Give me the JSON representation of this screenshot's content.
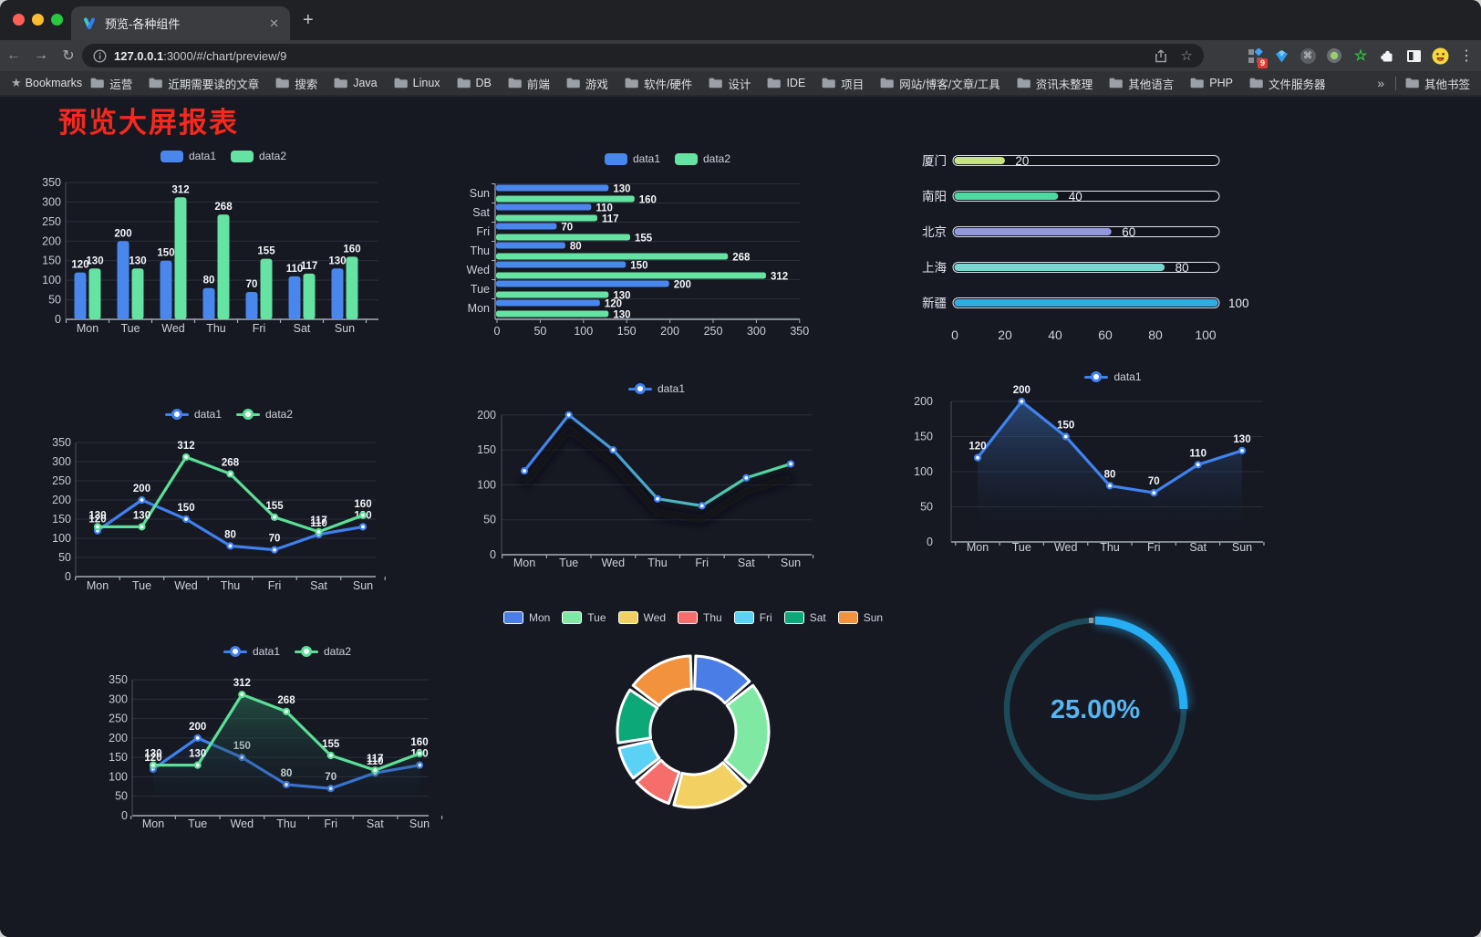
{
  "browser": {
    "traffic_lights": [
      "#ff5f57",
      "#febc2e",
      "#28c840"
    ],
    "tab": {
      "title": "预览-各种组件"
    },
    "icons": {
      "close": "✕",
      "plus": "+",
      "back": "←",
      "forward": "→",
      "reload": "↻",
      "home": "⌂",
      "star": "☆",
      "kebab": "⋮",
      "bookmarks_star": "★",
      "green_star": "☆"
    },
    "url": {
      "host": "127.0.0.1",
      "rest": ":3000/#/chart/preview/9"
    },
    "extension_badge": "9",
    "bookmarks_label": "Bookmarks",
    "bookmarks": [
      "运营",
      "近期需要读的文章",
      "搜索",
      "Java",
      "Linux",
      "DB",
      "前端",
      "游戏",
      "软件/硬件",
      "设计",
      "IDE",
      "项目",
      "网站/博客/文章/工具",
      "资讯未整理",
      "其他语言",
      "PHP",
      "文件服务器"
    ],
    "bookmarks_overflow": "»",
    "other_bookmarks": "其他书签"
  },
  "page": {
    "title": "预览大屏报表",
    "title_color": "#f5291d"
  },
  "chart_data": [
    {
      "id": "bar-vertical",
      "type": "bar",
      "categories": [
        "Mon",
        "Tue",
        "Wed",
        "Thu",
        "Fri",
        "Sat",
        "Sun"
      ],
      "series": [
        {
          "name": "data1",
          "color": "#4a87ec",
          "values": [
            120,
            200,
            150,
            80,
            70,
            110,
            130
          ]
        },
        {
          "name": "data2",
          "color": "#65e3a2",
          "values": [
            130,
            130,
            312,
            268,
            155,
            117,
            160
          ]
        }
      ],
      "ylim": [
        0,
        350
      ],
      "ystep": 50,
      "grid": true,
      "legend_position": "top"
    },
    {
      "id": "bar-horizontal",
      "type": "bar-horizontal",
      "categories": [
        "Mon",
        "Tue",
        "Wed",
        "Thu",
        "Fri",
        "Sat",
        "Sun"
      ],
      "series": [
        {
          "name": "data1",
          "color": "#4a87ec",
          "values": [
            120,
            200,
            150,
            80,
            70,
            110,
            130
          ]
        },
        {
          "name": "data2",
          "color": "#65e3a2",
          "values": [
            130,
            130,
            312,
            268,
            155,
            117,
            160
          ]
        }
      ],
      "xlim": [
        0,
        350
      ],
      "xstep": 50,
      "legend_position": "top"
    },
    {
      "id": "progress",
      "type": "progress-bars",
      "items": [
        {
          "label": "厦门",
          "value": 20,
          "color": "#c7e383"
        },
        {
          "label": "南阳",
          "value": 40,
          "color": "#4ed9a0"
        },
        {
          "label": "北京",
          "value": 60,
          "color": "#9397de"
        },
        {
          "label": "上海",
          "value": 80,
          "color": "#76d8d1"
        },
        {
          "label": "新疆",
          "value": 100,
          "color": "#32abe0"
        }
      ],
      "xlim": [
        0,
        100
      ],
      "xticks": [
        0,
        20,
        40,
        60,
        80,
        100
      ]
    },
    {
      "id": "line-dual",
      "type": "line",
      "categories": [
        "Mon",
        "Tue",
        "Wed",
        "Thu",
        "Fri",
        "Sat",
        "Sun"
      ],
      "series": [
        {
          "name": "data1",
          "color": "#3f80f0",
          "values": [
            120,
            200,
            150,
            80,
            70,
            110,
            130
          ]
        },
        {
          "name": "data2",
          "color": "#5bdf96",
          "values": [
            130,
            130,
            312,
            268,
            155,
            117,
            160
          ]
        }
      ],
      "ylim": [
        0,
        350
      ],
      "ystep": 50,
      "labels": true,
      "legend_position": "top"
    },
    {
      "id": "line-gradient",
      "type": "line",
      "categories": [
        "Mon",
        "Tue",
        "Wed",
        "Thu",
        "Fri",
        "Sat",
        "Sun"
      ],
      "series": [
        {
          "name": "data1",
          "color": "#3f80f0",
          "gradient": [
            "#3f7ef0",
            "#55dd9b"
          ],
          "values": [
            120,
            200,
            150,
            80,
            70,
            110,
            130
          ]
        }
      ],
      "ylim": [
        0,
        200
      ],
      "ystep": 50,
      "labels": false,
      "legend_position": "top"
    },
    {
      "id": "area-single",
      "type": "area",
      "categories": [
        "Mon",
        "Tue",
        "Wed",
        "Thu",
        "Fri",
        "Sat",
        "Sun"
      ],
      "series": [
        {
          "name": "data1",
          "color": "#3f83f0",
          "fill": [
            "rgba(52,96,158,0.65)",
            "rgba(20,28,44,0)"
          ],
          "values": [
            120,
            200,
            150,
            80,
            70,
            110,
            130
          ]
        }
      ],
      "ylim": [
        0,
        200
      ],
      "ystep": 50,
      "labels": true,
      "legend_position": "top"
    },
    {
      "id": "area-dual",
      "type": "area",
      "categories": [
        "Mon",
        "Tue",
        "Wed",
        "Thu",
        "Fri",
        "Sat",
        "Sun"
      ],
      "series": [
        {
          "name": "data1",
          "color": "#3f80f0",
          "fill": [
            "rgba(44,86,150,0.55)",
            "rgba(16,22,34,0)"
          ],
          "values": [
            120,
            200,
            150,
            80,
            70,
            110,
            130
          ]
        },
        {
          "name": "data2",
          "color": "#5bdf96",
          "fill": [
            "rgba(47,122,92,0.70)",
            "rgba(16,22,34,0)"
          ],
          "values": [
            130,
            130,
            312,
            268,
            155,
            117,
            160
          ]
        }
      ],
      "ylim": [
        0,
        350
      ],
      "ystep": 50,
      "labels": true,
      "legend_position": "top"
    },
    {
      "id": "donut",
      "type": "pie",
      "categories": [
        "Mon",
        "Tue",
        "Wed",
        "Thu",
        "Fri",
        "Sat",
        "Sun"
      ],
      "values": [
        120,
        200,
        150,
        80,
        70,
        110,
        130
      ],
      "colors": [
        "#4b7de6",
        "#7fe9a4",
        "#f2d162",
        "#f56e6b",
        "#5bd2f5",
        "#0ca878",
        "#f2923d"
      ],
      "legend_position": "top"
    },
    {
      "id": "gauge",
      "type": "gauge",
      "percent": 25,
      "value_label": "25.00%",
      "arc_color": "#25aef4",
      "track_color": "#1d4a58",
      "text_color": "#55b6f2"
    }
  ]
}
